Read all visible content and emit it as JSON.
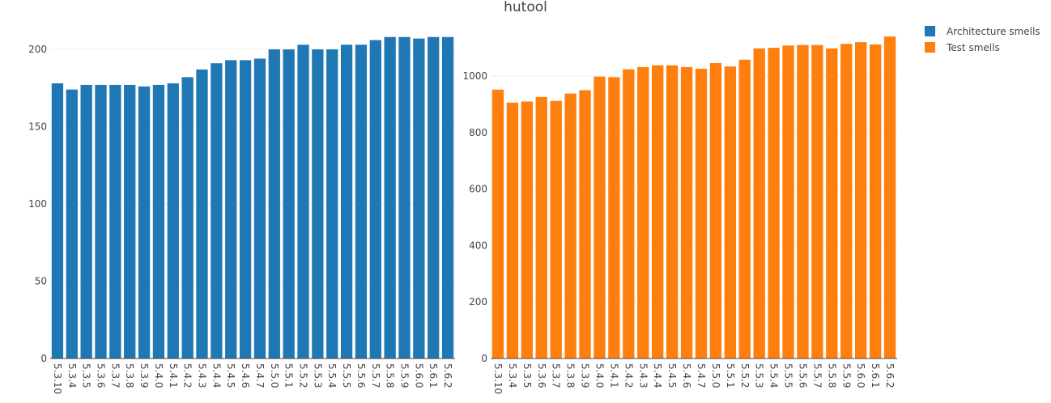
{
  "title": "hutool",
  "legend": {
    "placement": "top-right",
    "items": [
      {
        "label": "Architecture smells",
        "color": "#1f77b4"
      },
      {
        "label": "Test smells",
        "color": "#ff7f0e"
      }
    ]
  },
  "chart_data": [
    {
      "type": "bar",
      "name": "Architecture smells",
      "color": "#1f77b4",
      "categories": [
        "5.3.10",
        "5.3.4",
        "5.3.5",
        "5.3.6",
        "5.3.7",
        "5.3.8",
        "5.3.9",
        "5.4.0",
        "5.4.1",
        "5.4.2",
        "5.4.3",
        "5.4.4",
        "5.4.5",
        "5.4.6",
        "5.4.7",
        "5.5.0",
        "5.5.1",
        "5.5.2",
        "5.5.3",
        "5.5.4",
        "5.5.5",
        "5.5.6",
        "5.5.7",
        "5.5.8",
        "5.5.9",
        "5.6.0",
        "5.6.1",
        "5.6.2"
      ],
      "values": [
        178,
        174,
        177,
        177,
        177,
        177,
        176,
        177,
        178,
        182,
        187,
        191,
        193,
        193,
        194,
        200,
        200,
        203,
        200,
        200,
        203,
        203,
        206,
        208,
        208,
        207,
        208,
        208
      ],
      "ylim": [
        0,
        210
      ],
      "yticks": [
        0,
        50,
        100,
        150,
        200
      ],
      "grid": true
    },
    {
      "type": "bar",
      "name": "Test smells",
      "color": "#ff7f0e",
      "categories": [
        "5.3.10",
        "5.3.4",
        "5.3.5",
        "5.3.6",
        "5.3.7",
        "5.3.8",
        "5.3.9",
        "5.4.0",
        "5.4.1",
        "5.4.2",
        "5.4.3",
        "5.4.4",
        "5.4.5",
        "5.4.6",
        "5.4.7",
        "5.5.0",
        "5.5.1",
        "5.5.2",
        "5.5.3",
        "5.5.4",
        "5.5.5",
        "5.5.6",
        "5.5.7",
        "5.5.8",
        "5.5.9",
        "5.6.0",
        "5.6.1",
        "5.6.2"
      ],
      "values": [
        952,
        906,
        910,
        926,
        912,
        938,
        950,
        998,
        996,
        1024,
        1032,
        1038,
        1038,
        1032,
        1026,
        1046,
        1034,
        1058,
        1098,
        1100,
        1108,
        1110,
        1110,
        1098,
        1114,
        1120,
        1112,
        1140
      ],
      "ylim": [
        0,
        1150
      ],
      "yticks": [
        0,
        200,
        400,
        600,
        800,
        1000
      ],
      "grid": true
    }
  ]
}
